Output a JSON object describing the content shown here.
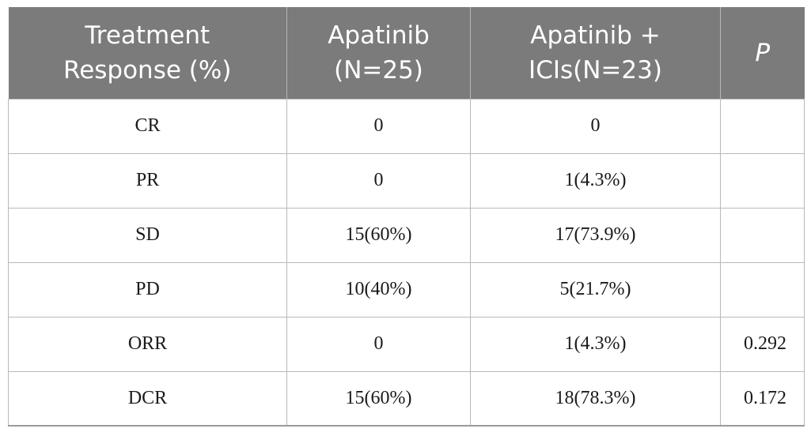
{
  "table": {
    "headers": [
      {
        "line1": "Treatment",
        "line2": "Response (%)"
      },
      {
        "line1": "Apatinib",
        "line2": "(N=25)"
      },
      {
        "line1": "Apatinib +",
        "line2": "ICIs(N=23)"
      },
      {
        "line1": "P",
        "line2": ""
      }
    ],
    "rows": [
      {
        "response": "CR",
        "apatinib": "0",
        "apatinib_icis": "0",
        "p": ""
      },
      {
        "response": "PR",
        "apatinib": "0",
        "apatinib_icis": "1(4.3%)",
        "p": ""
      },
      {
        "response": "SD",
        "apatinib": "15(60%)",
        "apatinib_icis": "17(73.9%)",
        "p": ""
      },
      {
        "response": "PD",
        "apatinib": "10(40%)",
        "apatinib_icis": "5(21.7%)",
        "p": ""
      },
      {
        "response": "ORR",
        "apatinib": "0",
        "apatinib_icis": "1(4.3%)",
        "p": "0.292"
      },
      {
        "response": "DCR",
        "apatinib": "15(60%)",
        "apatinib_icis": "18(78.3%)",
        "p": "0.172"
      }
    ]
  },
  "colors": {
    "header_bg": "#7b7b7b",
    "header_text": "#ffffff",
    "grid_line": "#b8b8b8"
  }
}
